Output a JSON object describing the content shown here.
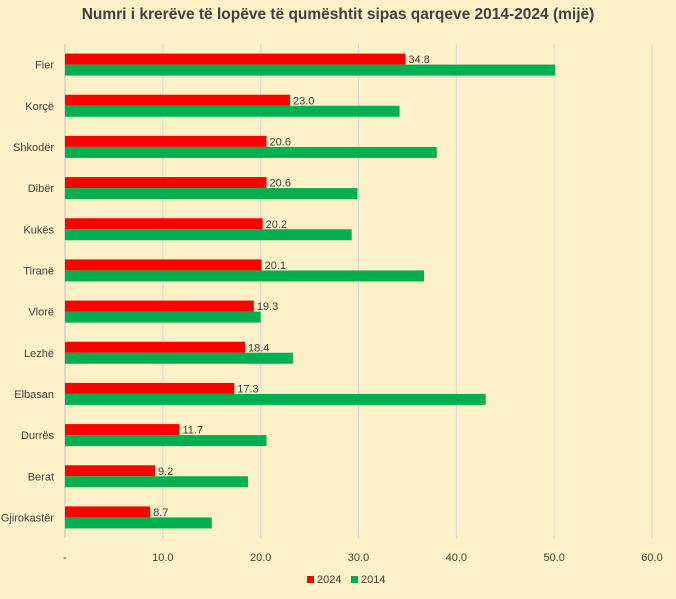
{
  "chart_data": {
    "type": "bar",
    "orientation": "horizontal",
    "title": "Numri i krerëve të lopëve të qumështit sipas qarqeve 2014-2024 (mijë)",
    "categories": [
      "Fier",
      "Korçë",
      "Shkodër",
      "Dibër",
      "Kukës",
      "Tiranë",
      "Vlorë",
      "Lezhë",
      "Elbasan",
      "Durrës",
      "Berat",
      "Gjirokastër"
    ],
    "series": [
      {
        "name": "2024",
        "color": "#ff0000",
        "values": [
          34.8,
          23.0,
          20.6,
          20.6,
          20.2,
          20.1,
          19.3,
          18.4,
          17.3,
          11.7,
          9.2,
          8.7
        ],
        "labels": [
          "34.8",
          "23.0",
          "20.6",
          "20.6",
          "20.2",
          "20.1",
          "19.3",
          "18.4",
          "17.3",
          "11.7",
          "9.2",
          "8.7"
        ]
      },
      {
        "name": "2014",
        "color": "#00b050",
        "values": [
          50.1,
          34.2,
          38.0,
          29.9,
          29.3,
          36.7,
          20.0,
          23.3,
          43.0,
          20.6,
          18.7,
          15.0
        ]
      }
    ],
    "xlim": [
      0,
      60
    ],
    "xticks": [
      0,
      10,
      20,
      30,
      40,
      50,
      60
    ],
    "xtick_labels": [
      "-",
      "10.0",
      "20.0",
      "30.0",
      "40.0",
      "50.0",
      "60.0"
    ],
    "grid": true,
    "legend_position": "bottom"
  }
}
